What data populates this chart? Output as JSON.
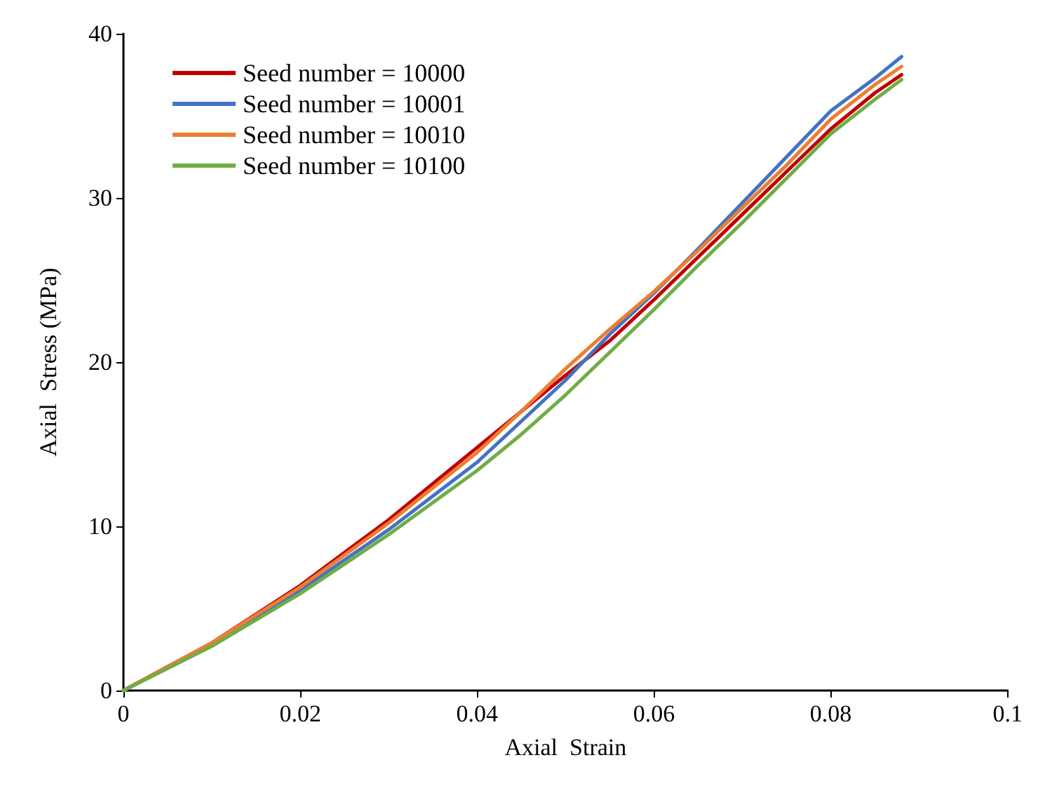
{
  "chart_data": {
    "type": "line",
    "xlabel": "Axial  Strain",
    "ylabel": "Axial  Stress (MPa)",
    "x": [
      0,
      0.01,
      0.02,
      0.03,
      0.04,
      0.045,
      0.05,
      0.055,
      0.06,
      0.065,
      0.07,
      0.075,
      0.08,
      0.085,
      0.088
    ],
    "series": [
      {
        "name": "Seed number = 10000",
        "color": "#c00000",
        "values": [
          0,
          2.9,
          6.4,
          10.4,
          14.8,
          17.0,
          19.2,
          21.3,
          23.8,
          26.4,
          29.0,
          31.6,
          34.2,
          36.4,
          37.5
        ]
      },
      {
        "name": "Seed number = 10001",
        "color": "#4472c4",
        "values": [
          0,
          2.8,
          6.1,
          9.8,
          13.9,
          16.4,
          18.9,
          21.7,
          24.2,
          26.9,
          29.7,
          32.5,
          35.3,
          37.3,
          38.6
        ]
      },
      {
        "name": "Seed number = 10010",
        "color": "#ed7d31",
        "values": [
          0,
          2.9,
          6.3,
          10.2,
          14.5,
          17.0,
          19.6,
          22.0,
          24.3,
          26.8,
          29.4,
          32.0,
          34.8,
          36.9,
          38.0
        ]
      },
      {
        "name": "Seed number = 10100",
        "color": "#70ad47",
        "values": [
          0,
          2.7,
          5.9,
          9.5,
          13.4,
          15.6,
          18.0,
          20.6,
          23.2,
          25.9,
          28.5,
          31.2,
          33.9,
          36.0,
          37.2
        ]
      }
    ],
    "xlim": [
      0,
      0.1
    ],
    "xticks": [
      0,
      0.02,
      0.04,
      0.06,
      0.08,
      0.1
    ],
    "ylim": [
      0,
      40
    ],
    "yticks": [
      0,
      10,
      20,
      30,
      40
    ],
    "grid": false,
    "legend": "top left",
    "marker": "none",
    "line_style": "solid"
  }
}
